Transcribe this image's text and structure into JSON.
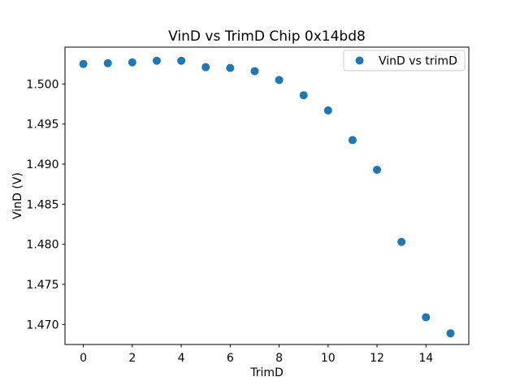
{
  "figure": {
    "background": "#ffffff"
  },
  "chart_data": {
    "type": "scatter",
    "title": "VinD vs TrimD Chip 0x14bd8",
    "xlabel": "TrimD",
    "ylabel": "VinD (V)",
    "legend": {
      "label": "VinD vs trimD",
      "position": "upper right",
      "marker": "circle"
    },
    "series": [
      {
        "name": "VinD vs trimD",
        "x": [
          0,
          1,
          2,
          3,
          4,
          5,
          6,
          7,
          8,
          9,
          10,
          11,
          12,
          13,
          14,
          15
        ],
        "y": [
          1.5025,
          1.5026,
          1.5027,
          1.5029,
          1.5029,
          1.5021,
          1.502,
          1.5016,
          1.5005,
          1.4986,
          1.4967,
          1.493,
          1.4893,
          1.4803,
          1.4709,
          1.4689
        ]
      }
    ],
    "xlim": [
      -0.75,
      15.75
    ],
    "ylim": [
      1.4675,
      1.5046
    ],
    "xticks": [
      0,
      2,
      4,
      6,
      8,
      10,
      12,
      14
    ],
    "xtick_labels": [
      "0",
      "2",
      "4",
      "6",
      "8",
      "10",
      "12",
      "14"
    ],
    "yticks": [
      1.47,
      1.475,
      1.48,
      1.485,
      1.49,
      1.495,
      1.5
    ],
    "ytick_labels": [
      "1.470",
      "1.475",
      "1.480",
      "1.485",
      "1.490",
      "1.495",
      "1.500"
    ],
    "grid": false,
    "marker_color": "#1f77b4",
    "axis_color": "#000000",
    "legend_border_color": "#cccccc",
    "legend_background": "#ffffff"
  }
}
